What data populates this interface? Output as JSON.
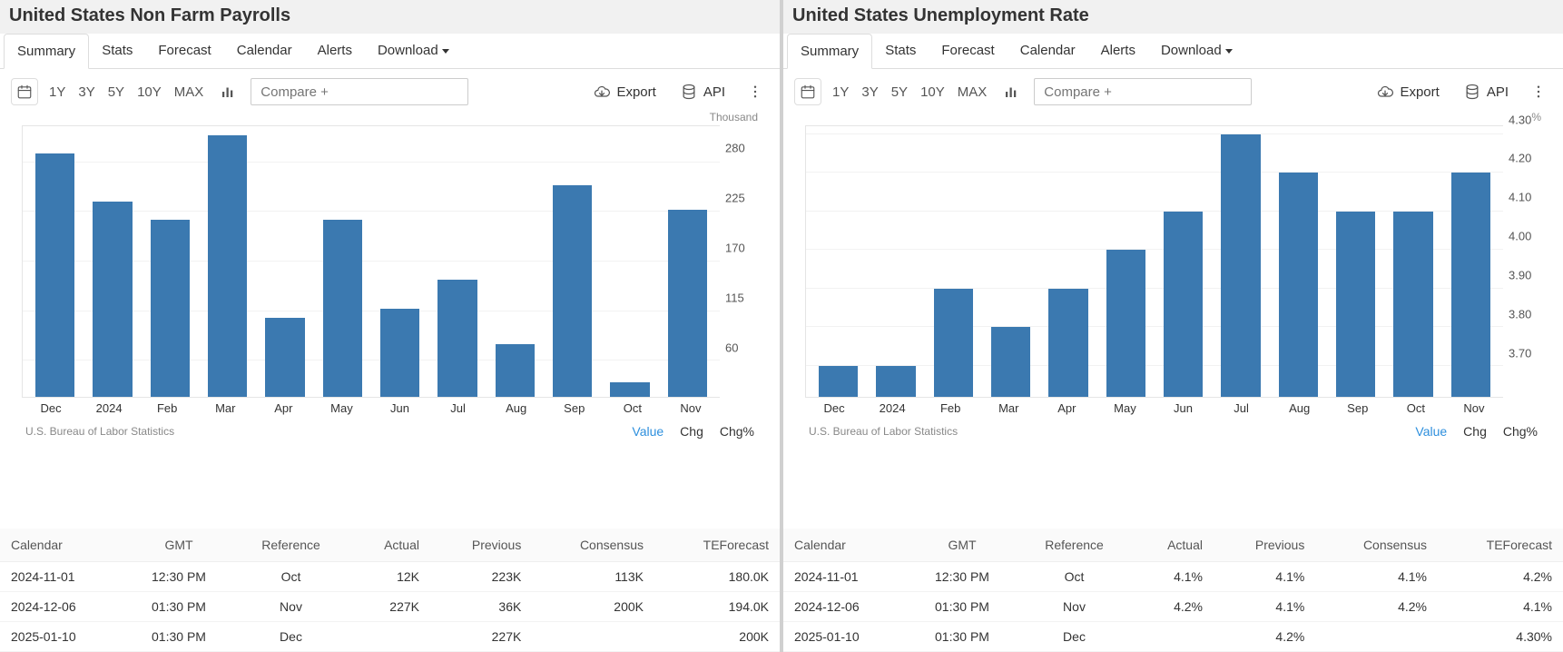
{
  "colors": {
    "bar": "#3b79b0",
    "grid": "#f2f2f2",
    "link_active": "#2d8fdd"
  },
  "tabs": [
    "Summary",
    "Stats",
    "Forecast",
    "Calendar",
    "Alerts",
    "Download"
  ],
  "ranges": [
    "1Y",
    "3Y",
    "5Y",
    "10Y",
    "MAX"
  ],
  "compare_placeholder": "Compare +",
  "export_label": "Export",
  "api_label": "API",
  "source": "U.S. Bureau of Labor Statistics",
  "stat_links": [
    "Value",
    "Chg",
    "Chg%"
  ],
  "cal_headers": [
    "Calendar",
    "GMT",
    "Reference",
    "Actual",
    "Previous",
    "Consensus",
    "TEForecast"
  ],
  "panels": [
    {
      "title": "United States Non Farm Payrolls",
      "unit": "Thousand",
      "chart": {
        "type": "bar",
        "categories": [
          "Dec",
          "2024",
          "Feb",
          "Mar",
          "Apr",
          "May",
          "Jun",
          "Jul",
          "Aug",
          "Sep",
          "Oct",
          "Nov"
        ],
        "values": [
          290,
          236,
          216,
          310,
          108,
          216,
          118,
          150,
          78,
          255,
          36,
          227
        ],
        "ylim": [
          20,
          320
        ],
        "yticks": [
          60,
          115,
          170,
          225,
          280
        ],
        "bar_color": "#3b79b0",
        "grid_color": "#f2f2f2"
      },
      "calendar": [
        {
          "date": "2024-11-01",
          "gmt": "12:30 PM",
          "ref": "Oct",
          "actual": "12K",
          "previous": "223K",
          "consensus": "113K",
          "forecast": "180.0K"
        },
        {
          "date": "2024-12-06",
          "gmt": "01:30 PM",
          "ref": "Nov",
          "actual": "227K",
          "previous": "36K",
          "consensus": "200K",
          "forecast": "194.0K"
        },
        {
          "date": "2025-01-10",
          "gmt": "01:30 PM",
          "ref": "Dec",
          "actual": "",
          "previous": "227K",
          "consensus": "",
          "forecast": "200K"
        }
      ]
    },
    {
      "title": "United States Unemployment Rate",
      "unit": "%",
      "chart": {
        "type": "bar",
        "categories": [
          "Dec",
          "2024",
          "Feb",
          "Mar",
          "Apr",
          "May",
          "Jun",
          "Jul",
          "Aug",
          "Sep",
          "Oct",
          "Nov"
        ],
        "values": [
          3.7,
          3.7,
          3.9,
          3.8,
          3.9,
          4.0,
          4.1,
          4.3,
          4.2,
          4.1,
          4.1,
          4.2
        ],
        "ylim": [
          3.62,
          4.32
        ],
        "yticks": [
          3.7,
          3.8,
          3.9,
          4.0,
          4.1,
          4.2,
          4.3
        ],
        "ytick_fmt": 2,
        "bar_color": "#3b79b0",
        "grid_color": "#f2f2f2"
      },
      "calendar": [
        {
          "date": "2024-11-01",
          "gmt": "12:30 PM",
          "ref": "Oct",
          "actual": "4.1%",
          "previous": "4.1%",
          "consensus": "4.1%",
          "forecast": "4.2%"
        },
        {
          "date": "2024-12-06",
          "gmt": "01:30 PM",
          "ref": "Nov",
          "actual": "4.2%",
          "previous": "4.1%",
          "consensus": "4.2%",
          "forecast": "4.1%"
        },
        {
          "date": "2025-01-10",
          "gmt": "01:30 PM",
          "ref": "Dec",
          "actual": "",
          "previous": "4.2%",
          "consensus": "",
          "forecast": "4.30%"
        }
      ]
    }
  ]
}
